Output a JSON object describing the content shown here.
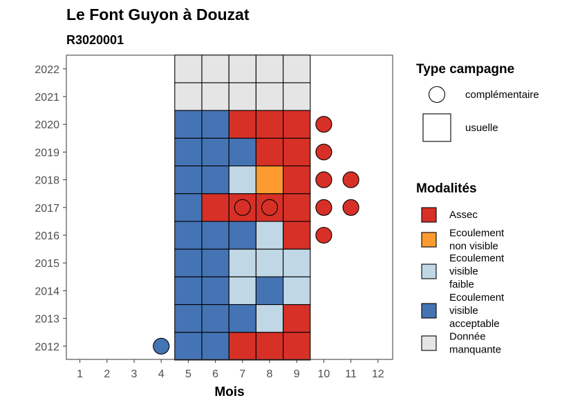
{
  "chart_data": {
    "type": "heatmap",
    "title": "Le Font Guyon à Douzat",
    "subtitle": "R3020001",
    "xlabel": "Mois",
    "ylabel": "",
    "x_ticks": [
      "1",
      "2",
      "3",
      "4",
      "5",
      "6",
      "7",
      "8",
      "9",
      "10",
      "11",
      "12"
    ],
    "y_ticks": [
      "2012",
      "2013",
      "2014",
      "2015",
      "2016",
      "2017",
      "2018",
      "2019",
      "2020",
      "2021",
      "2022"
    ],
    "xlim": [
      0.5,
      12.5
    ],
    "grid": false,
    "legend_placement": "right",
    "colors": {
      "Assec": "#d73027",
      "Ecoulement non visible": "#fd9b30",
      "Ecoulement visible faible": "#c0d7e5",
      "Ecoulement visible acceptable": "#4574b5",
      "Donnée manquante": "#e5e5e5"
    },
    "usual_campaign_months": [
      5,
      6,
      7,
      8,
      9
    ],
    "usual_campaign": [
      {
        "year": "2012",
        "values": [
          "Ecoulement visible acceptable",
          "Ecoulement visible acceptable",
          "Assec",
          "Assec",
          "Assec"
        ]
      },
      {
        "year": "2013",
        "values": [
          "Ecoulement visible acceptable",
          "Ecoulement visible acceptable",
          "Ecoulement visible acceptable",
          "Ecoulement visible faible",
          "Assec"
        ]
      },
      {
        "year": "2014",
        "values": [
          "Ecoulement visible acceptable",
          "Ecoulement visible acceptable",
          "Ecoulement visible faible",
          "Ecoulement visible acceptable",
          "Ecoulement visible faible"
        ]
      },
      {
        "year": "2015",
        "values": [
          "Ecoulement visible acceptable",
          "Ecoulement visible acceptable",
          "Ecoulement visible faible",
          "Ecoulement visible faible",
          "Ecoulement visible faible"
        ]
      },
      {
        "year": "2016",
        "values": [
          "Ecoulement visible acceptable",
          "Ecoulement visible acceptable",
          "Ecoulement visible acceptable",
          "Ecoulement visible faible",
          "Assec"
        ]
      },
      {
        "year": "2017",
        "values": [
          "Ecoulement visible acceptable",
          "Assec",
          "Assec",
          "Assec",
          "Assec"
        ]
      },
      {
        "year": "2018",
        "values": [
          "Ecoulement visible acceptable",
          "Ecoulement visible acceptable",
          "Ecoulement visible faible",
          "Ecoulement non visible",
          "Assec"
        ]
      },
      {
        "year": "2019",
        "values": [
          "Ecoulement visible acceptable",
          "Ecoulement visible acceptable",
          "Ecoulement visible acceptable",
          "Assec",
          "Assec"
        ]
      },
      {
        "year": "2020",
        "values": [
          "Ecoulement visible acceptable",
          "Ecoulement visible acceptable",
          "Assec",
          "Assec",
          "Assec"
        ]
      },
      {
        "year": "2021",
        "values": [
          "Donnée manquante",
          "Donnée manquante",
          "Donnée manquante",
          "Donnée manquante",
          "Donnée manquante"
        ]
      },
      {
        "year": "2022",
        "values": [
          "Donnée manquante",
          "Donnée manquante",
          "Donnée manquante",
          "Donnée manquante",
          "Donnée manquante"
        ]
      }
    ],
    "complementary_campaign": [
      {
        "year": "2012",
        "month": 4,
        "value": "Ecoulement visible acceptable"
      },
      {
        "year": "2016",
        "month": 10,
        "value": "Assec"
      },
      {
        "year": "2017",
        "month": 7,
        "value": "Assec"
      },
      {
        "year": "2017",
        "month": 8,
        "value": "Assec"
      },
      {
        "year": "2017",
        "month": 10,
        "value": "Assec"
      },
      {
        "year": "2017",
        "month": 11,
        "value": "Assec"
      },
      {
        "year": "2018",
        "month": 10,
        "value": "Assec"
      },
      {
        "year": "2018",
        "month": 11,
        "value": "Assec"
      },
      {
        "year": "2019",
        "month": 10,
        "value": "Assec"
      },
      {
        "year": "2020",
        "month": 10,
        "value": "Assec"
      }
    ],
    "legend_type": {
      "title": "Type campagne",
      "items": [
        {
          "label": "complémentaire",
          "shape": "circle"
        },
        {
          "label": "usuelle",
          "shape": "square"
        }
      ]
    },
    "legend_modalites": {
      "title": "Modalités",
      "items": [
        {
          "key": "Assec",
          "lines": [
            "Assec"
          ]
        },
        {
          "key": "Ecoulement non visible",
          "lines": [
            "Ecoulement",
            "non visible"
          ]
        },
        {
          "key": "Ecoulement visible faible",
          "lines": [
            "Ecoulement",
            "visible",
            "faible"
          ]
        },
        {
          "key": "Ecoulement visible acceptable",
          "lines": [
            "Ecoulement",
            "visible",
            "acceptable"
          ]
        },
        {
          "key": "Donnée manquante",
          "lines": [
            "Donnée",
            "manquante"
          ]
        }
      ]
    }
  }
}
